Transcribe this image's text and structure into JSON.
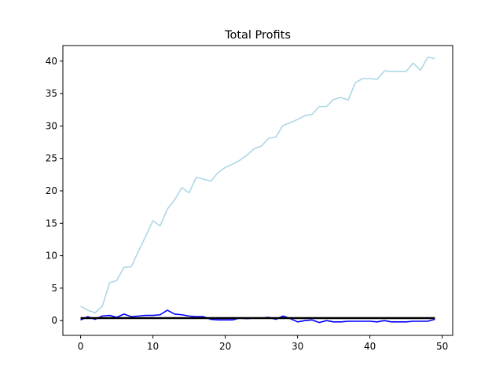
{
  "chart_data": {
    "type": "line",
    "title": "Total Profits",
    "xlabel": "",
    "ylabel": "",
    "xlim": [
      -2.45,
      51.45
    ],
    "ylim": [
      -2.28,
      42.4
    ],
    "xticks": [
      0,
      10,
      20,
      30,
      40,
      50
    ],
    "yticks": [
      0,
      5,
      10,
      15,
      20,
      25,
      30,
      35,
      40
    ],
    "grid": false,
    "legend": "none",
    "x": [
      0,
      1,
      2,
      3,
      4,
      5,
      6,
      7,
      8,
      9,
      10,
      11,
      12,
      13,
      14,
      15,
      16,
      17,
      18,
      19,
      20,
      21,
      22,
      23,
      24,
      25,
      26,
      27,
      28,
      29,
      30,
      31,
      32,
      33,
      34,
      35,
      36,
      37,
      38,
      39,
      40,
      41,
      42,
      43,
      44,
      45,
      46,
      47,
      48,
      49
    ],
    "series": [
      {
        "color": "#add8e6",
        "values": [
          2.2,
          1.6,
          1.2,
          2.2,
          5.8,
          6.2,
          8.2,
          8.3,
          10.7,
          13.0,
          15.4,
          14.6,
          17.2,
          18.6,
          20.5,
          19.7,
          22.1,
          21.8,
          21.5,
          22.8,
          23.6,
          24.1,
          24.7,
          25.5,
          26.5,
          26.9,
          28.1,
          28.3,
          30.1,
          30.5,
          31.0,
          31.6,
          31.8,
          33.0,
          33.0,
          34.1,
          34.4,
          34.0,
          36.7,
          37.3,
          37.3,
          37.2,
          38.5,
          38.4,
          38.4,
          38.4,
          39.7,
          38.6,
          40.6,
          40.4
        ]
      },
      {
        "color": "#0000ff",
        "values": [
          0.1,
          0.6,
          0.2,
          0.7,
          0.8,
          0.5,
          1.0,
          0.6,
          0.7,
          0.8,
          0.8,
          0.9,
          1.6,
          1.0,
          0.9,
          0.7,
          0.6,
          0.6,
          0.2,
          0.1,
          0.1,
          0.1,
          0.4,
          0.3,
          0.4,
          0.4,
          0.5,
          0.2,
          0.7,
          0.3,
          -0.2,
          0.0,
          0.1,
          -0.3,
          0.0,
          -0.2,
          -0.2,
          -0.1,
          -0.1,
          -0.1,
          -0.1,
          -0.2,
          0.0,
          -0.2,
          -0.2,
          -0.2,
          -0.1,
          -0.1,
          -0.1,
          0.2
        ]
      },
      {
        "color": "#000000",
        "values": [
          0.38,
          0.38,
          0.38,
          0.38,
          0.38,
          0.38,
          0.38,
          0.38,
          0.38,
          0.38,
          0.38,
          0.38,
          0.38,
          0.38,
          0.38,
          0.38,
          0.38,
          0.38,
          0.38,
          0.38,
          0.38,
          0.38,
          0.38,
          0.38,
          0.38,
          0.38,
          0.38,
          0.38,
          0.38,
          0.38,
          0.38,
          0.38,
          0.38,
          0.38,
          0.38,
          0.38,
          0.38,
          0.38,
          0.38,
          0.38,
          0.38,
          0.38,
          0.38,
          0.38,
          0.38,
          0.38,
          0.38,
          0.38,
          0.38,
          0.38
        ]
      }
    ]
  }
}
